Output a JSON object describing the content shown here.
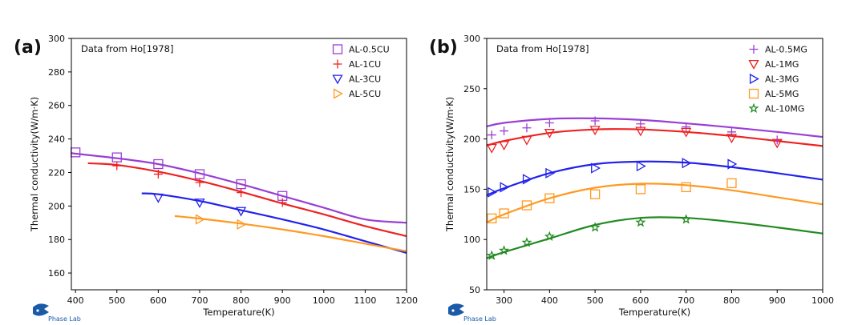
{
  "brand": {
    "name": "Phase Lab"
  },
  "chart_data": [
    {
      "panel_label": "(a)",
      "type": "scatter",
      "annotation": "Data from Ho[1978]",
      "xlabel": "Temperature(K)",
      "ylabel": "Thermal conductivity(W/m·K)",
      "xlim": [
        390,
        1200
      ],
      "ylim": [
        150,
        300
      ],
      "xticks": [
        400,
        500,
        600,
        700,
        800,
        900,
        1000,
        1100,
        1200
      ],
      "yticks": [
        160,
        180,
        200,
        220,
        240,
        260,
        280,
        300
      ],
      "grid": false,
      "legend_position": "top-right",
      "series": [
        {
          "name": "AL-0.5CU",
          "color": "#9a3fd4",
          "marker": "square",
          "points": [
            [
              400,
              232
            ],
            [
              500,
              229
            ],
            [
              600,
              225
            ],
            [
              700,
              219
            ],
            [
              800,
              213
            ],
            [
              900,
              206
            ]
          ],
          "fit": [
            [
              390,
              231.5
            ],
            [
              500,
              228.5
            ],
            [
              600,
              225
            ],
            [
              700,
              219.5
            ],
            [
              800,
              213
            ],
            [
              900,
              206
            ],
            [
              1000,
              199
            ],
            [
              1100,
              192
            ],
            [
              1200,
              190
            ]
          ]
        },
        {
          "name": "AL-1CU",
          "color": "#ee2222",
          "marker": "plus",
          "points": [
            [
              500,
              224
            ],
            [
              600,
              219
            ],
            [
              700,
              214
            ],
            [
              800,
              208
            ],
            [
              900,
              202
            ]
          ],
          "fit": [
            [
              430,
              225.5
            ],
            [
              500,
              224.5
            ],
            [
              600,
              220.5
            ],
            [
              700,
              215
            ],
            [
              800,
              208.5
            ],
            [
              900,
              201.5
            ],
            [
              1000,
              195
            ],
            [
              1100,
              188
            ],
            [
              1200,
              182
            ]
          ]
        },
        {
          "name": "AL-3CU",
          "color": "#2222ee",
          "marker": "triangle-down",
          "points": [
            [
              600,
              205
            ],
            [
              700,
              202
            ],
            [
              800,
              197
            ]
          ],
          "fit": [
            [
              560,
              207.5
            ],
            [
              600,
              207
            ],
            [
              700,
              203
            ],
            [
              800,
              197.5
            ],
            [
              900,
              192
            ],
            [
              1000,
              186
            ],
            [
              1100,
              179
            ],
            [
              1200,
              172
            ]
          ]
        },
        {
          "name": "AL-5CU",
          "color": "#ff9922",
          "marker": "triangle-right",
          "points": [
            [
              700,
              192
            ],
            [
              800,
              189
            ]
          ],
          "fit": [
            [
              640,
              194
            ],
            [
              700,
              192.5
            ],
            [
              800,
              189.5
            ],
            [
              900,
              186
            ],
            [
              1000,
              182
            ],
            [
              1100,
              177.5
            ],
            [
              1200,
              173
            ]
          ]
        }
      ]
    },
    {
      "panel_label": "(b)",
      "type": "scatter",
      "annotation": "Data from Ho[1978]",
      "xlabel": "Temperature(K)",
      "ylabel": "Thermal conductivity(W/m·K)",
      "xlim": [
        262,
        1000
      ],
      "ylim": [
        50,
        300
      ],
      "xticks": [
        300,
        400,
        500,
        600,
        700,
        800,
        900,
        1000
      ],
      "yticks": [
        50,
        100,
        150,
        200,
        250,
        300
      ],
      "grid": false,
      "legend_position": "top-right",
      "series": [
        {
          "name": "AL-0.5MG",
          "color": "#9a3fd4",
          "marker": "plus",
          "points": [
            [
              273,
              204
            ],
            [
              300,
              208
            ],
            [
              350,
              211
            ],
            [
              400,
              216
            ],
            [
              500,
              218
            ],
            [
              600,
              215
            ],
            [
              700,
              212
            ],
            [
              800,
              207
            ],
            [
              900,
              199
            ]
          ],
          "fit": [
            [
              262,
              212.5
            ],
            [
              300,
              216
            ],
            [
              400,
              220
            ],
            [
              500,
              220.5
            ],
            [
              600,
              219
            ],
            [
              700,
              215.5
            ],
            [
              800,
              211.5
            ],
            [
              900,
              207
            ],
            [
              1000,
              202
            ]
          ]
        },
        {
          "name": "AL-1MG",
          "color": "#ee2222",
          "marker": "triangle-down",
          "points": [
            [
              273,
              191
            ],
            [
              300,
              194
            ],
            [
              350,
              199
            ],
            [
              400,
              206
            ],
            [
              500,
              209
            ],
            [
              600,
              208
            ],
            [
              700,
              207
            ],
            [
              800,
              201
            ],
            [
              900,
              196
            ]
          ],
          "fit": [
            [
              262,
              193.5
            ],
            [
              300,
              198
            ],
            [
              400,
              206
            ],
            [
              500,
              209.5
            ],
            [
              600,
              209.5
            ],
            [
              700,
              207
            ],
            [
              800,
              203
            ],
            [
              900,
              198
            ],
            [
              1000,
              193
            ]
          ]
        },
        {
          "name": "AL-3MG",
          "color": "#2222ee",
          "marker": "triangle-right",
          "points": [
            [
              273,
              147
            ],
            [
              300,
              152
            ],
            [
              350,
              160
            ],
            [
              400,
              166
            ],
            [
              500,
              171
            ],
            [
              600,
              173
            ],
            [
              700,
              176
            ],
            [
              800,
              175
            ]
          ],
          "fit": [
            [
              262,
              144
            ],
            [
              300,
              151
            ],
            [
              400,
              166
            ],
            [
              500,
              175
            ],
            [
              600,
              177.5
            ],
            [
              700,
              176.5
            ],
            [
              800,
              172
            ],
            [
              900,
              166
            ],
            [
              1000,
              159.5
            ]
          ]
        },
        {
          "name": "AL-5MG",
          "color": "#ff9922",
          "marker": "square",
          "points": [
            [
              273,
              121
            ],
            [
              300,
              126
            ],
            [
              350,
              134
            ],
            [
              400,
              141
            ],
            [
              500,
              145
            ],
            [
              600,
              150
            ],
            [
              700,
              152
            ],
            [
              800,
              156
            ]
          ],
          "fit": [
            [
              262,
              117
            ],
            [
              300,
              125
            ],
            [
              400,
              141
            ],
            [
              500,
              151.5
            ],
            [
              600,
              155.5
            ],
            [
              700,
              154
            ],
            [
              800,
              149
            ],
            [
              900,
              142
            ],
            [
              1000,
              135
            ]
          ]
        },
        {
          "name": "AL-10MG",
          "color": "#228b22",
          "marker": "star",
          "points": [
            [
              273,
              84
            ],
            [
              300,
              89
            ],
            [
              350,
              97
            ],
            [
              400,
              103
            ],
            [
              500,
              112
            ],
            [
              600,
              117
            ],
            [
              700,
              120
            ]
          ],
          "fit": [
            [
              262,
              81.5
            ],
            [
              300,
              87.5
            ],
            [
              400,
              101
            ],
            [
              500,
              114.5
            ],
            [
              600,
              121.5
            ],
            [
              700,
              121.5
            ],
            [
              800,
              117.5
            ],
            [
              900,
              112
            ],
            [
              1000,
              106
            ]
          ]
        }
      ]
    }
  ]
}
